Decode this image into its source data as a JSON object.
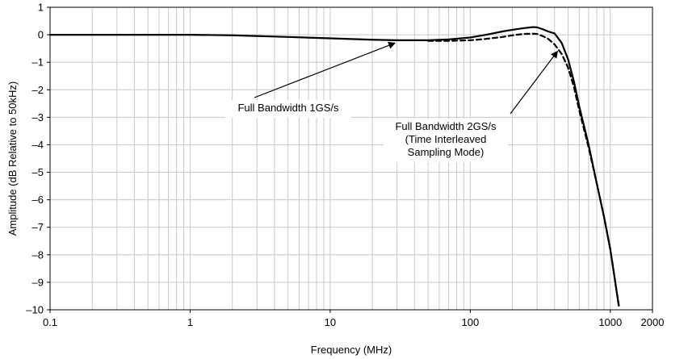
{
  "chart_data": {
    "type": "line",
    "xlabel": "Frequency (MHz)",
    "ylabel": "Amplitude (dB Relative to 50kHz)",
    "x_scale": "log",
    "xlim": [
      0.1,
      2000
    ],
    "ylim": [
      -10,
      1
    ],
    "grid": true,
    "x_ticks": [
      {
        "value": 0.1,
        "label": "0.1"
      },
      {
        "value": 1,
        "label": "1"
      },
      {
        "value": 10,
        "label": "10"
      },
      {
        "value": 100,
        "label": "100"
      },
      {
        "value": 1000,
        "label": "1000"
      },
      {
        "value": 2000,
        "label": "2000"
      }
    ],
    "y_ticks": [
      {
        "value": 1,
        "label": "1"
      },
      {
        "value": 0,
        "label": "0"
      },
      {
        "value": -1,
        "label": "–1"
      },
      {
        "value": -2,
        "label": "–2"
      },
      {
        "value": -3,
        "label": "–3"
      },
      {
        "value": -4,
        "label": "–4"
      },
      {
        "value": -5,
        "label": "–5"
      },
      {
        "value": -6,
        "label": "–6"
      },
      {
        "value": -7,
        "label": "–7"
      },
      {
        "value": -8,
        "label": "–8"
      },
      {
        "value": -9,
        "label": "–9"
      },
      {
        "value": -10,
        "label": "–10"
      }
    ],
    "series": [
      {
        "style": "solid",
        "x": [
          0.1,
          0.2,
          0.5,
          1,
          2,
          5,
          10,
          20,
          30,
          50,
          70,
          100,
          130,
          170,
          200,
          240,
          280,
          300,
          330,
          360,
          400,
          450,
          500,
          550,
          600,
          700,
          800,
          900,
          1000,
          1100,
          1150
        ],
        "y": [
          0,
          0,
          0,
          0,
          -0.02,
          -0.08,
          -0.13,
          -0.18,
          -0.2,
          -0.2,
          -0.17,
          -0.1,
          0,
          0.12,
          0.18,
          0.24,
          0.28,
          0.27,
          0.2,
          0.12,
          0.05,
          -0.3,
          -0.9,
          -1.7,
          -2.6,
          -4.0,
          -5.4,
          -6.6,
          -7.8,
          -9.2,
          -9.85
        ]
      },
      {
        "style": "dashed",
        "x": [
          50,
          70,
          100,
          130,
          170,
          200,
          240,
          280,
          300,
          330,
          360,
          400,
          450,
          500,
          550,
          600,
          700,
          800,
          900,
          1000,
          1100,
          1150
        ],
        "y": [
          -0.22,
          -0.22,
          -0.2,
          -0.15,
          -0.08,
          -0.02,
          0.03,
          0.04,
          0.03,
          -0.05,
          -0.15,
          -0.35,
          -0.7,
          -1.2,
          -1.9,
          -2.75,
          -4.1,
          -5.4,
          -6.6,
          -7.8,
          -9.2,
          -9.85
        ]
      }
    ],
    "annotations": [
      {
        "lines": [
          "Full Bandwidth 1GS/s"
        ],
        "target": {
          "x": 29,
          "y": -0.3
        }
      },
      {
        "lines": [
          "Full Bandwidth 2GS/s",
          "(Time Interleaved",
          "Sampling Mode)"
        ],
        "target": {
          "x": 420,
          "y": -0.6
        }
      }
    ]
  }
}
